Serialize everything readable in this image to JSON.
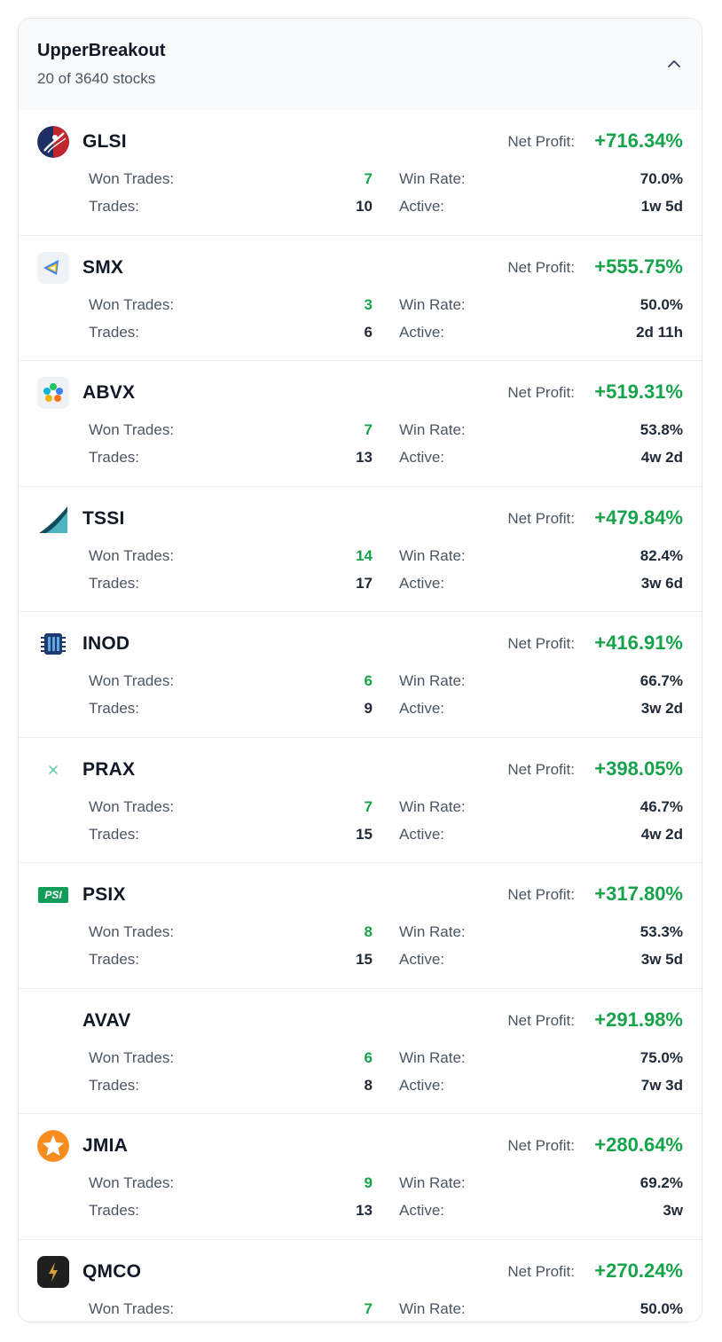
{
  "header": {
    "title": "UpperBreakout",
    "subtitle": "20 of 3640 stocks"
  },
  "labels": {
    "net_profit": "Net Profit:",
    "won_trades": "Won Trades:",
    "trades": "Trades:",
    "win_rate": "Win Rate:",
    "active": "Active:"
  },
  "stocks": [
    {
      "ticker": "GLSI",
      "net_profit": "+716.34%",
      "won_trades": "7",
      "trades": "10",
      "win_rate": "70.0%",
      "active": "1w 5d",
      "logo": "glsi-logo-icon"
    },
    {
      "ticker": "SMX",
      "net_profit": "+555.75%",
      "won_trades": "3",
      "trades": "6",
      "win_rate": "50.0%",
      "active": "2d 11h",
      "logo": "smx-logo-icon"
    },
    {
      "ticker": "ABVX",
      "net_profit": "+519.31%",
      "won_trades": "7",
      "trades": "13",
      "win_rate": "53.8%",
      "active": "4w 2d",
      "logo": "abvx-logo-icon"
    },
    {
      "ticker": "TSSI",
      "net_profit": "+479.84%",
      "won_trades": "14",
      "trades": "17",
      "win_rate": "82.4%",
      "active": "3w 6d",
      "logo": "tssi-logo-icon"
    },
    {
      "ticker": "INOD",
      "net_profit": "+416.91%",
      "won_trades": "6",
      "trades": "9",
      "win_rate": "66.7%",
      "active": "3w 2d",
      "logo": "inod-logo-icon"
    },
    {
      "ticker": "PRAX",
      "net_profit": "+398.05%",
      "won_trades": "7",
      "trades": "15",
      "win_rate": "46.7%",
      "active": "4w 2d",
      "logo": "prax-logo-icon"
    },
    {
      "ticker": "PSIX",
      "net_profit": "+317.80%",
      "won_trades": "8",
      "trades": "15",
      "win_rate": "53.3%",
      "active": "3w 5d",
      "logo": "psix-logo-icon",
      "logo_text": "PSI"
    },
    {
      "ticker": "AVAV",
      "net_profit": "+291.98%",
      "won_trades": "6",
      "trades": "8",
      "win_rate": "75.0%",
      "active": "7w 3d",
      "logo": ""
    },
    {
      "ticker": "JMIA",
      "net_profit": "+280.64%",
      "won_trades": "9",
      "trades": "13",
      "win_rate": "69.2%",
      "active": "3w",
      "logo": "jmia-logo-icon"
    },
    {
      "ticker": "QMCO",
      "net_profit": "+270.24%",
      "won_trades": "7",
      "trades": "",
      "win_rate": "50.0%",
      "active": "",
      "logo": "qmco-logo-icon"
    }
  ],
  "colors": {
    "positive": "#16a34a",
    "header_bg": "#f8fafc",
    "border": "#e5e7eb"
  }
}
